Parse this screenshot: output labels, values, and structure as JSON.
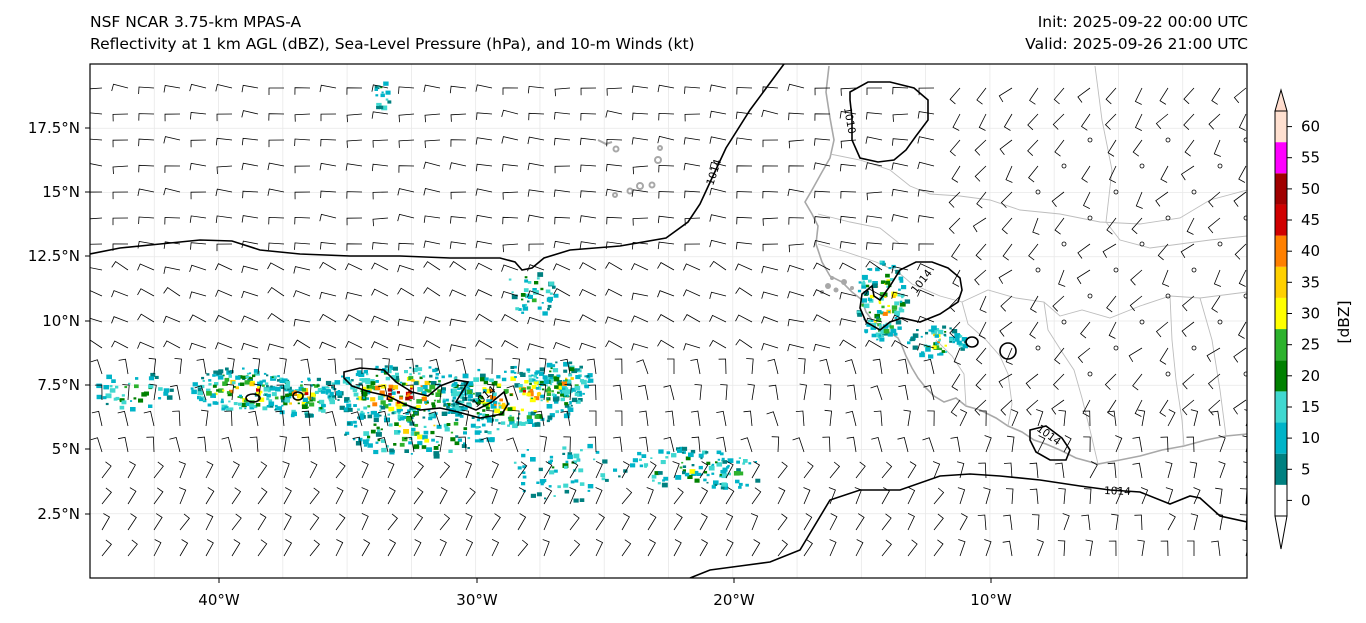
{
  "header": {
    "model_title": "NSF NCAR 3.75-km MPAS-A",
    "fields_title": "Reflectivity at 1 km AGL (dBZ), Sea-Level Pressure (hPa), and 10-m Winds (kt)",
    "init": "Init: 2025-09-22 00:00 UTC",
    "valid": "Valid: 2025-09-26 21:00 UTC"
  },
  "map": {
    "lon_range": [
      -45,
      0
    ],
    "lat_range": [
      0,
      20
    ],
    "lon_ticks": [
      {
        "value": -40,
        "label": "40°W"
      },
      {
        "value": -30,
        "label": "30°W"
      },
      {
        "value": -20,
        "label": "20°W"
      },
      {
        "value": -10,
        "label": "10°W"
      }
    ],
    "lat_ticks": [
      {
        "value": 17.5,
        "label": "17.5°N"
      },
      {
        "value": 15,
        "label": "15°N"
      },
      {
        "value": 12.5,
        "label": "12.5°N"
      },
      {
        "value": 10,
        "label": "10°N"
      },
      {
        "value": 7.5,
        "label": "7.5°N"
      },
      {
        "value": 5,
        "label": "5°N"
      },
      {
        "value": 2.5,
        "label": "2.5°N"
      }
    ],
    "isobar_labels": [
      "1010",
      "1014",
      "1014",
      "1014",
      "1014",
      "1014"
    ],
    "colors": {
      "isobar": "#000000",
      "coast": "#a8a8a8",
      "border": "#bbbbbb",
      "grid": "#e8e8e8"
    }
  },
  "colorbar": {
    "unit_label": "[dBZ]",
    "ticks": [
      "0",
      "5",
      "10",
      "15",
      "20",
      "25",
      "30",
      "35",
      "40",
      "45",
      "50",
      "55",
      "60"
    ],
    "colors": [
      "#ffffff",
      "#008080",
      "#00b4c8",
      "#40d8d0",
      "#008000",
      "#2cb22c",
      "#ffff00",
      "#ffd000",
      "#ff8000",
      "#d00000",
      "#a00000",
      "#ff00ff",
      "#ffe0d0"
    ]
  }
}
